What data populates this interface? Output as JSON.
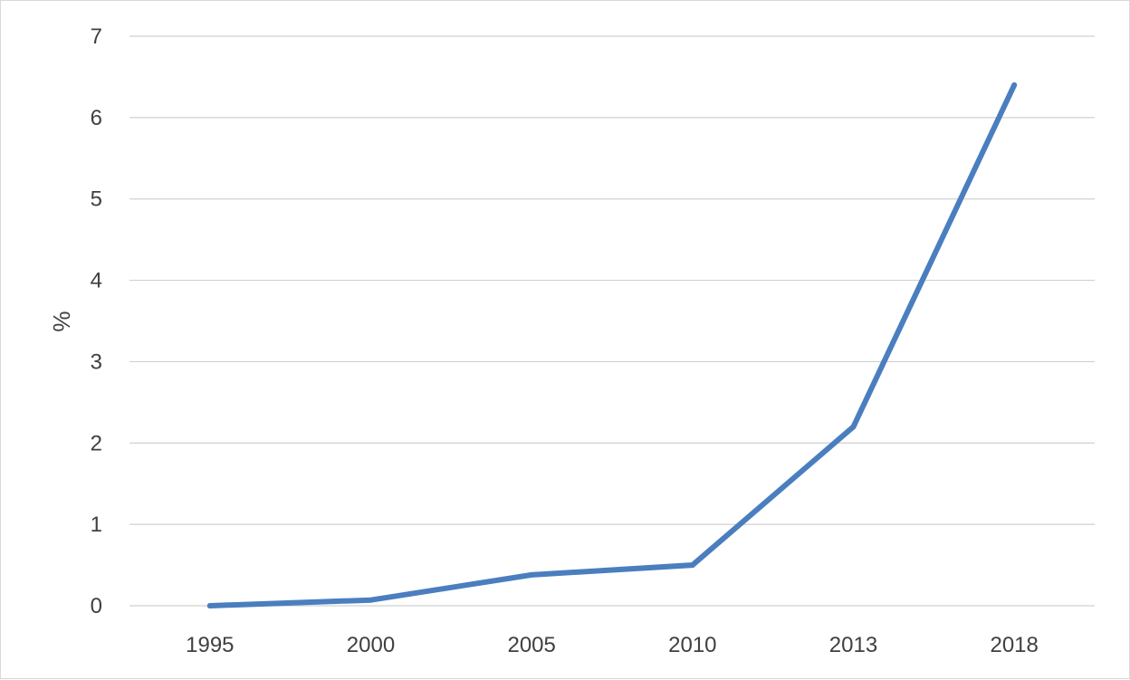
{
  "chart_data": {
    "type": "line",
    "title": "",
    "xlabel": "",
    "ylabel": "%",
    "categories": [
      "1995",
      "2000",
      "2005",
      "2010",
      "2013",
      "2018"
    ],
    "series": [
      {
        "values": [
          0,
          0.07,
          0.38,
          0.5,
          2.2,
          6.4
        ],
        "color": "#4a7ebf"
      }
    ],
    "ylim": [
      0,
      7
    ],
    "yticks": [
      "0",
      "1",
      "2",
      "3",
      "4",
      "5",
      "6",
      "7"
    ],
    "grid": true,
    "legend": "none"
  }
}
